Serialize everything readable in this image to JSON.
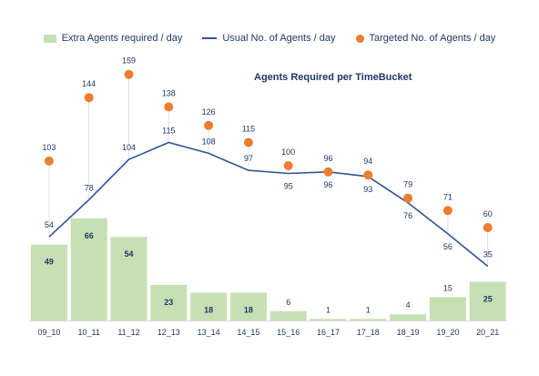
{
  "chart_data": {
    "type": "bar",
    "title": "Agents Required per TimeBucket",
    "xlabel": "",
    "ylabel": "",
    "ylim": [
      0,
      170
    ],
    "grid": false,
    "legend_position": "top",
    "categories": [
      "09_10",
      "10_11",
      "11_12",
      "12_13",
      "13_14",
      "14_15",
      "15_16",
      "16_17",
      "17_18",
      "18_19",
      "19_20",
      "20_21"
    ],
    "series": [
      {
        "name": "Extra Agents required / day",
        "kind": "bar",
        "color": "#c6e0b4",
        "values": [
          49,
          66,
          54,
          23,
          18,
          18,
          6,
          1,
          1,
          4,
          15,
          25
        ]
      },
      {
        "name": "Usual No. of Agents / day",
        "kind": "line",
        "color": "#2f5597",
        "values": [
          54,
          78,
          104,
          115,
          108,
          97,
          95,
          96,
          93,
          76,
          56,
          35
        ]
      },
      {
        "name": "Targeted No. of Agents / day",
        "kind": "scatter",
        "color": "#ed7d31",
        "values": [
          103,
          144,
          159,
          138,
          126,
          115,
          100,
          96,
          94,
          79,
          71,
          60
        ]
      }
    ]
  }
}
